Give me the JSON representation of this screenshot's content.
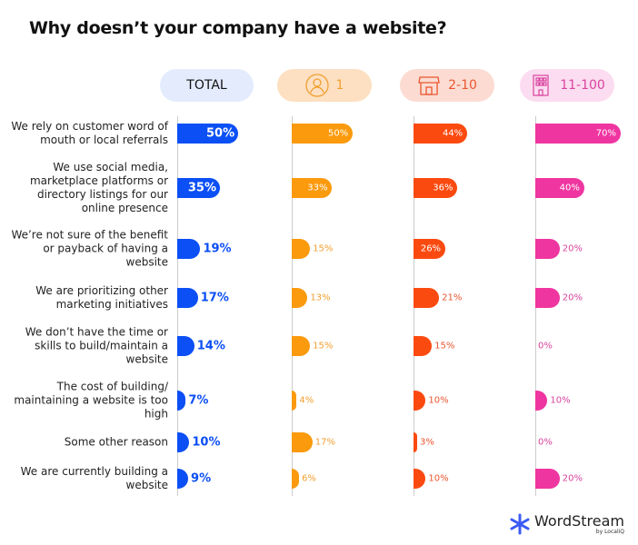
{
  "chart_data": {
    "type": "bar",
    "orientation": "horizontal",
    "title": "Why doesn’t your company have a website?",
    "categories": [
      "We rely on customer word of mouth or local referrals",
      "We use social media, marketplace platforms or directory listings for our online presence",
      "We’re not sure of the benefit or payback of having a website",
      "We are prioritizing other marketing initiatives",
      "We don’t have the time or skills to build/maintain a website",
      "The cost of building/ maintaining a website is too high",
      "Some other reason",
      "We are currently building a website"
    ],
    "series": [
      {
        "name": "TOTAL",
        "icon": "",
        "color": "#0b4ff5",
        "pill": "#e3ebfd",
        "text": "#111111",
        "values": [
          50,
          35,
          19,
          17,
          14,
          7,
          10,
          9
        ]
      },
      {
        "name": "1",
        "icon": "person-icon",
        "color": "#fb9a0d",
        "pill": "#fde0c2",
        "text": "#f0a030",
        "values": [
          50,
          33,
          15,
          13,
          15,
          4,
          17,
          6
        ]
      },
      {
        "name": "2-10",
        "icon": "storefront-icon",
        "color": "#fb4a10",
        "pill": "#fcdcd2",
        "text": "#ea5630",
        "values": [
          44,
          36,
          26,
          21,
          15,
          10,
          3,
          10
        ]
      },
      {
        "name": "11-100",
        "icon": "office-building-icon",
        "color": "#ef35a0",
        "pill": "#fcdcf0",
        "text": "#d9449e",
        "values": [
          70,
          40,
          20,
          20,
          0,
          10,
          0,
          20
        ]
      }
    ],
    "unit": "%"
  },
  "brand": {
    "name": "WordStream",
    "sub": "by LocaliQ"
  }
}
